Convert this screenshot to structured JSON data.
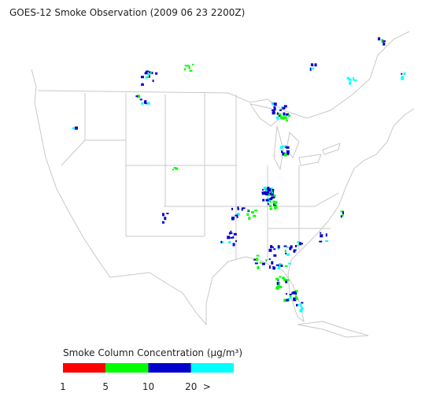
{
  "title": "GOES-12 Smoke Observation (2009 06 23  2200Z)",
  "legend": {
    "title": "Smoke Column Concentration (μg/m³)",
    "bins": [
      {
        "color": "#ff0000"
      },
      {
        "color": "#00ff00"
      },
      {
        "color": "#0000cc"
      },
      {
        "color": "#00ffff"
      }
    ],
    "tick_labels": [
      "1",
      "5",
      "10",
      "20",
      ">"
    ]
  }
}
